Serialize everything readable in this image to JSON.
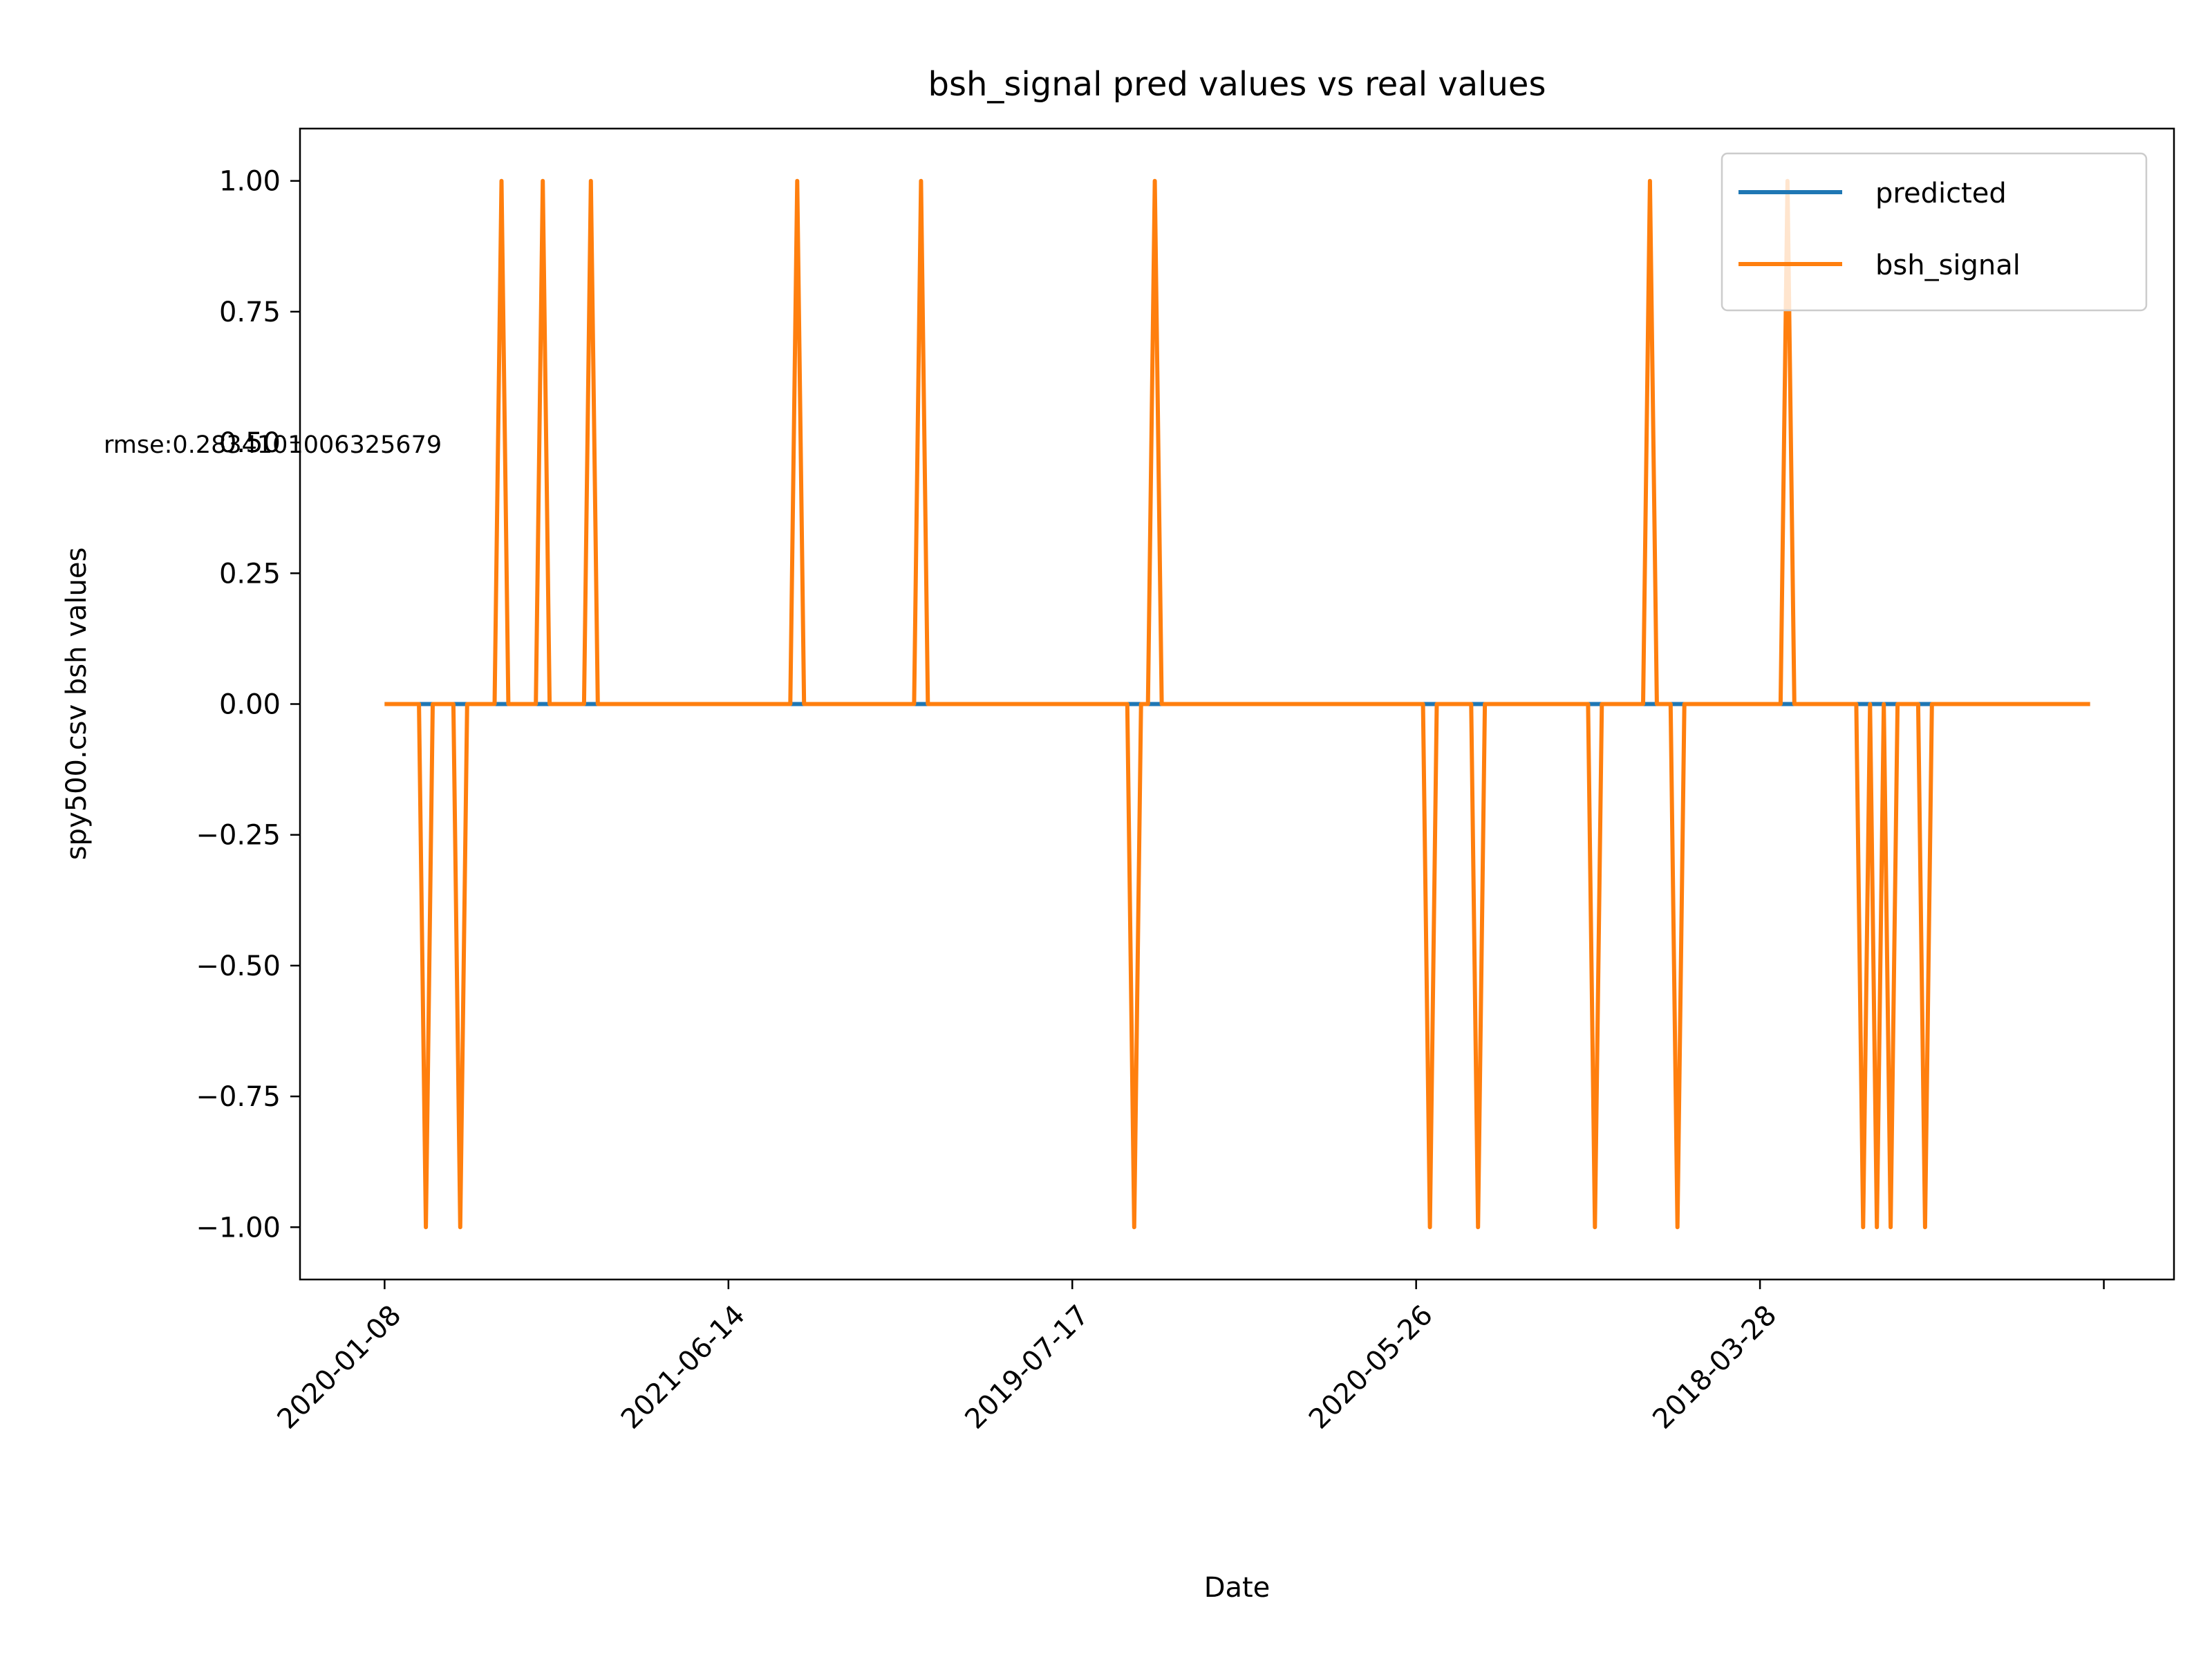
{
  "chart_data": {
    "type": "line",
    "title": "bsh_signal pred values vs real values",
    "xlabel": "Date",
    "ylabel": "spy500.csv bsh values",
    "annotation": "rmse:0.2834101006325679",
    "x_tick_labels": [
      "2020-01-08",
      "2021-06-14",
      "2019-07-17",
      "2020-05-26",
      "2018-03-28",
      ""
    ],
    "x_tick_positions": [
      0,
      100,
      200,
      300,
      400,
      500
    ],
    "xlim": [
      -24.6,
      520.4
    ],
    "ylim": [
      -1.1,
      1.1
    ],
    "y_ticks": [
      1.0,
      0.75,
      0.5,
      0.25,
      0.0,
      -0.25,
      -0.5,
      -0.75,
      -1.0
    ],
    "y_tick_labels": [
      "1.00",
      "0.75",
      "0.50",
      "0.25",
      "0.00",
      "−0.25",
      "−0.50",
      "−0.75",
      "−1.00"
    ],
    "grid": false,
    "legend_position": "top-right",
    "colors": {
      "predicted": "#1f77b4",
      "bsh_signal": "#ff7f0e"
    },
    "series": [
      {
        "name": "predicted",
        "x": [
          0,
          496
        ],
        "values": [
          0,
          0
        ]
      },
      {
        "name": "bsh_signal",
        "x": [
          0,
          10,
          12,
          14,
          20,
          22,
          24,
          32,
          34,
          36,
          44,
          46,
          48,
          58,
          60,
          62,
          118,
          120,
          122,
          154,
          156,
          158,
          216,
          218,
          220,
          222,
          224,
          226,
          302,
          304,
          306,
          316,
          318,
          320,
          350,
          352,
          354,
          366,
          368,
          370,
          374,
          376,
          378,
          406,
          408,
          410,
          428,
          430,
          432,
          434,
          436,
          438,
          440,
          442,
          446,
          448,
          450,
          496
        ],
        "values": [
          0,
          0,
          -1,
          0,
          0,
          -1,
          0,
          0,
          1,
          0,
          0,
          1,
          0,
          0,
          1,
          0,
          0,
          1,
          0,
          0,
          1,
          0,
          0,
          -1,
          0,
          0,
          1,
          0,
          0,
          -1,
          0,
          0,
          -1,
          0,
          0,
          -1,
          0,
          0,
          1,
          0,
          0,
          -1,
          0,
          0,
          1,
          0,
          0,
          -1,
          0,
          -1,
          0,
          -1,
          0,
          0,
          0,
          -1,
          0,
          0
        ]
      }
    ]
  }
}
